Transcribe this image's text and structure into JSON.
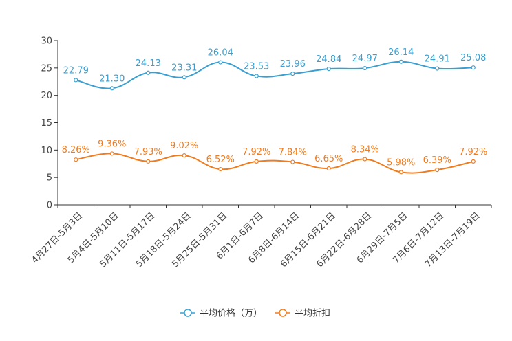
{
  "chart_data": {
    "type": "line",
    "title": "",
    "xlabel": "",
    "ylabel": "",
    "ylim": [
      0,
      30
    ],
    "yticks": [
      "0",
      "5",
      "10",
      "15",
      "20",
      "25",
      "30"
    ],
    "categories": [
      "4月27日-5月3日",
      "5月4日-5月10日",
      "5月11日-5月17日",
      "5月18日-5月24日",
      "5月25日-5月31日",
      "6月1日-6月7日",
      "6月8日-6月14日",
      "6月15日-6月21日",
      "6月22日-6月28日",
      "6月29日-7月5日",
      "7月6日-7月12日",
      "7月13日-7月19日"
    ],
    "legend_position": "bottom-center",
    "series": [
      {
        "name": "平均价格（万）",
        "color": "#3a9fd0",
        "values": [
          22.79,
          21.3,
          24.13,
          23.31,
          26.04,
          23.53,
          23.96,
          24.84,
          24.97,
          26.14,
          24.91,
          25.08
        ],
        "labels": [
          "22.79",
          "21.30",
          "24.13",
          "23.31",
          "26.04",
          "23.53",
          "23.96",
          "24.84",
          "24.97",
          "26.14",
          "24.91",
          "25.08"
        ]
      },
      {
        "name": "平均折扣",
        "color": "#f07c1e",
        "values": [
          8.26,
          9.36,
          7.93,
          9.02,
          6.52,
          7.92,
          7.84,
          6.65,
          8.34,
          5.98,
          6.39,
          7.92
        ],
        "labels": [
          "8.26%",
          "9.36%",
          "7.93%",
          "9.02%",
          "6.52%",
          "7.92%",
          "7.84%",
          "6.65%",
          "8.34%",
          "5.98%",
          "6.39%",
          "7.92%"
        ]
      }
    ]
  }
}
